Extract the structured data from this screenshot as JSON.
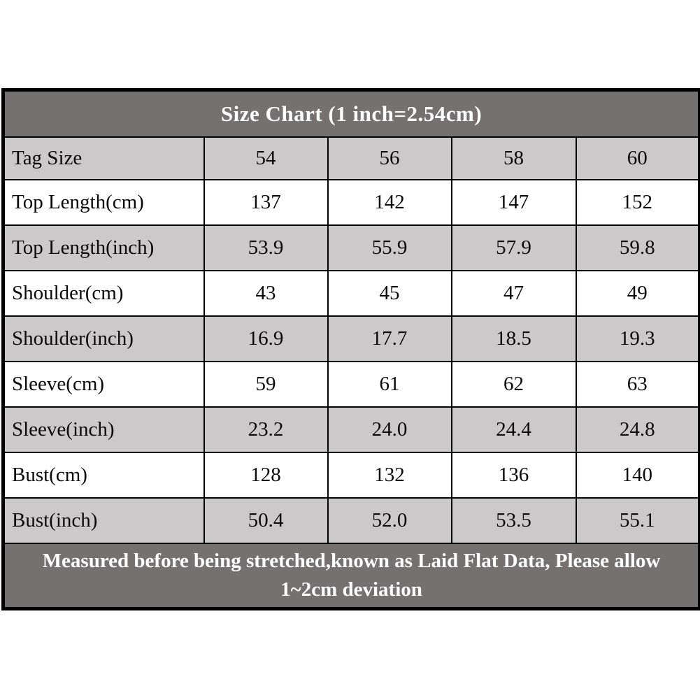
{
  "table": {
    "title": "Size Chart (1 inch=2.54cm)",
    "columns": [
      "Tag Size",
      "54",
      "56",
      "58",
      "60"
    ],
    "rows": [
      {
        "label": "Top Length(cm)",
        "values": [
          "137",
          "142",
          "147",
          "152"
        ],
        "shaded": false
      },
      {
        "label": "Top Length(inch)",
        "values": [
          "53.9",
          "55.9",
          "57.9",
          "59.8"
        ],
        "shaded": true
      },
      {
        "label": "Shoulder(cm)",
        "values": [
          "43",
          "45",
          "47",
          "49"
        ],
        "shaded": false
      },
      {
        "label": "Shoulder(inch)",
        "values": [
          "16.9",
          "17.7",
          "18.5",
          "19.3"
        ],
        "shaded": true
      },
      {
        "label": "Sleeve(cm)",
        "values": [
          "59",
          "61",
          "62",
          "63"
        ],
        "shaded": false
      },
      {
        "label": "Sleeve(inch)",
        "values": [
          "23.2",
          "24.0",
          "24.4",
          "24.8"
        ],
        "shaded": true
      },
      {
        "label": "Bust(cm)",
        "values": [
          "128",
          "132",
          "136",
          "140"
        ],
        "shaded": false
      },
      {
        "label": "Bust(inch)",
        "values": [
          "50.4",
          "52.0",
          "53.5",
          "55.1"
        ],
        "shaded": true
      }
    ],
    "footer_line1": "Measured before being stretched,known as Laid Flat Data, Please allow",
    "footer_line2": "1~2cm deviation",
    "colors": {
      "page_bg": "#ffffff",
      "header_bg": "#757171",
      "header_text": "#ffffff",
      "shaded_row_bg": "#cbc9c9",
      "plain_row_bg": "#ffffff",
      "border_color": "#000000",
      "cell_text": "#0a0a0a"
    }
  },
  "chart_data": {
    "type": "table",
    "title": "Size Chart (1 inch=2.54cm)",
    "columns": [
      "Tag Size",
      "54",
      "56",
      "58",
      "60"
    ],
    "rows": [
      [
        "Top Length(cm)",
        137,
        142,
        147,
        152
      ],
      [
        "Top Length(inch)",
        53.9,
        55.9,
        57.9,
        59.8
      ],
      [
        "Shoulder(cm)",
        43,
        45,
        47,
        49
      ],
      [
        "Shoulder(inch)",
        16.9,
        17.7,
        18.5,
        19.3
      ],
      [
        "Sleeve(cm)",
        59,
        61,
        62,
        63
      ],
      [
        "Sleeve(inch)",
        23.2,
        24.0,
        24.4,
        24.8
      ],
      [
        "Bust(cm)",
        128,
        132,
        136,
        140
      ],
      [
        "Bust(inch)",
        50.4,
        52.0,
        53.5,
        55.1
      ]
    ],
    "footnote": "Measured before being stretched,known as Laid Flat Data, Please allow 1~2cm deviation"
  }
}
